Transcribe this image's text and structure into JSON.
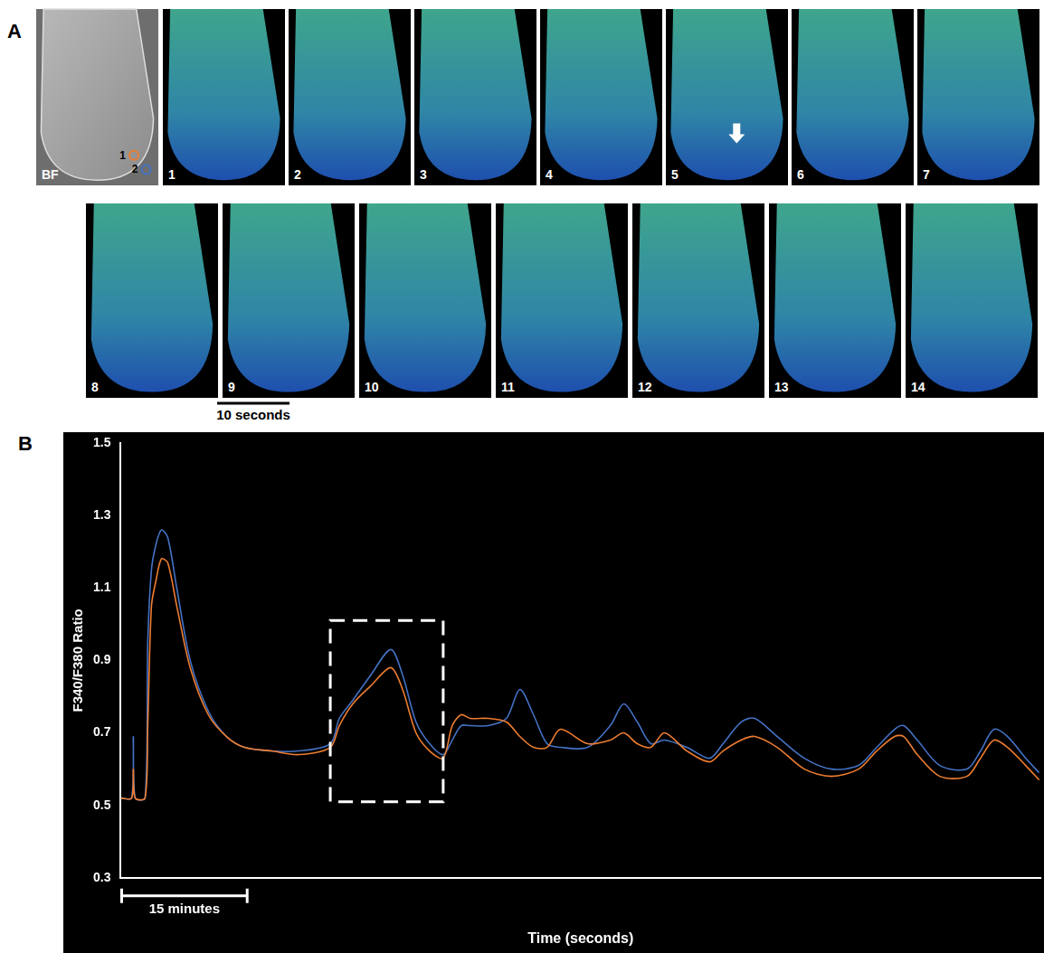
{
  "panel_a": {
    "letter": "A",
    "bright_field_label": "BF",
    "frame_labels": [
      "1",
      "2",
      "3",
      "4",
      "5",
      "6",
      "7",
      "8",
      "9",
      "10",
      "11",
      "12",
      "13",
      "14"
    ],
    "scale_bar_label": "10 seconds"
  },
  "chart_data": {
    "type": "line",
    "panel_label": "B",
    "x_label": "Time (seconds)",
    "y_label": "F340/F380 Ratio",
    "x": [
      0,
      77,
      89,
      102,
      172,
      191,
      217,
      249,
      287,
      332,
      396,
      491,
      619,
      747,
      874,
      1066,
      1257,
      1481,
      1545,
      1640,
      1768,
      1909,
      1992,
      2087,
      2183,
      2279,
      2343,
      2406,
      2470,
      2598,
      2726,
      2821,
      2917,
      3013,
      3108,
      3300,
      3460,
      3555,
      3651,
      3747,
      3843,
      4002,
      4162,
      4257,
      4385,
      4481,
      4640,
      4832,
      5023,
      5215,
      5343,
      5470,
      5534,
      5630,
      5789,
      5981,
      6077,
      6172,
      6268,
      6396,
      6491
    ],
    "series": [
      {
        "name": "1",
        "color": "#ed7d31",
        "values": [
          0.52,
          0.52,
          0.6,
          0.52,
          0.52,
          0.72,
          1.05,
          1.12,
          1.18,
          1.17,
          1.05,
          0.88,
          0.75,
          0.69,
          0.66,
          0.65,
          0.64,
          0.66,
          0.72,
          0.78,
          0.83,
          0.88,
          0.82,
          0.7,
          0.65,
          0.63,
          0.72,
          0.75,
          0.74,
          0.74,
          0.73,
          0.69,
          0.66,
          0.66,
          0.71,
          0.67,
          0.68,
          0.7,
          0.67,
          0.66,
          0.7,
          0.65,
          0.62,
          0.65,
          0.68,
          0.69,
          0.66,
          0.6,
          0.58,
          0.6,
          0.65,
          0.69,
          0.69,
          0.64,
          0.58,
          0.58,
          0.63,
          0.68,
          0.66,
          0.61,
          0.57
        ]
      },
      {
        "name": "2",
        "color": "#4472c4",
        "values": [
          0.52,
          0.52,
          0.69,
          0.52,
          0.52,
          0.95,
          1.15,
          1.22,
          1.26,
          1.24,
          1.1,
          0.9,
          0.76,
          0.69,
          0.66,
          0.65,
          0.65,
          0.67,
          0.74,
          0.79,
          0.86,
          0.93,
          0.86,
          0.73,
          0.67,
          0.64,
          0.68,
          0.72,
          0.72,
          0.72,
          0.74,
          0.82,
          0.75,
          0.67,
          0.66,
          0.66,
          0.72,
          0.78,
          0.73,
          0.67,
          0.68,
          0.66,
          0.63,
          0.67,
          0.73,
          0.74,
          0.69,
          0.63,
          0.6,
          0.61,
          0.66,
          0.71,
          0.72,
          0.68,
          0.61,
          0.6,
          0.65,
          0.71,
          0.69,
          0.63,
          0.59
        ]
      }
    ],
    "xlim": [
      0,
      6500
    ],
    "ylim": [
      0.3,
      1.5
    ],
    "yticks": [
      0.3,
      0.5,
      0.7,
      0.9,
      1.1,
      1.3,
      1.5
    ],
    "grid": false,
    "tick_labels": "y",
    "scale_bar": {
      "value": 900,
      "label": "15 minutes"
    },
    "highlight": {
      "x": [
        1481,
        2279
      ],
      "y": [
        0.51,
        1.01
      ]
    }
  }
}
